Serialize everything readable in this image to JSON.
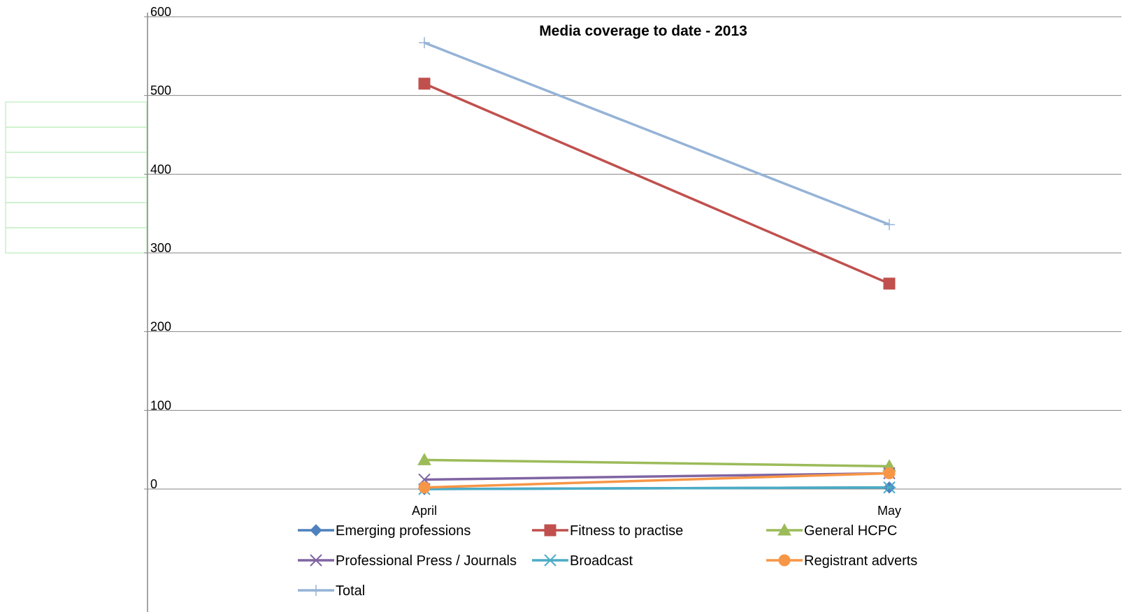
{
  "chart_data": {
    "type": "line",
    "title": "Media coverage to date - 2013",
    "xlabel": "",
    "ylabel": "",
    "categories": [
      "April",
      "May"
    ],
    "ylim": [
      0,
      600
    ],
    "yticks": [
      0,
      100,
      200,
      300,
      400,
      500,
      600
    ],
    "grid": true,
    "legend_position": "bottom",
    "series": [
      {
        "name": "Emerging professions",
        "values": [
          0,
          2
        ],
        "color": "#4F81BD",
        "marker": "diamond"
      },
      {
        "name": "Fitness to practise",
        "values": [
          515,
          261
        ],
        "color": "#C0504D",
        "marker": "square"
      },
      {
        "name": "General HCPC",
        "values": [
          37,
          29
        ],
        "color": "#9BBB59",
        "marker": "triangle"
      },
      {
        "name": "Professional Press / Journals",
        "values": [
          12,
          20
        ],
        "color": "#8064A2",
        "marker": "x"
      },
      {
        "name": "Broadcast",
        "values": [
          0,
          2
        ],
        "color": "#4BACC6",
        "marker": "star"
      },
      {
        "name": "Registrant adverts",
        "values": [
          2,
          20
        ],
        "color": "#F79646",
        "marker": "circle"
      },
      {
        "name": "Total",
        "values": [
          567,
          336
        ],
        "color": "#95B3D7",
        "marker": "plus"
      }
    ]
  }
}
